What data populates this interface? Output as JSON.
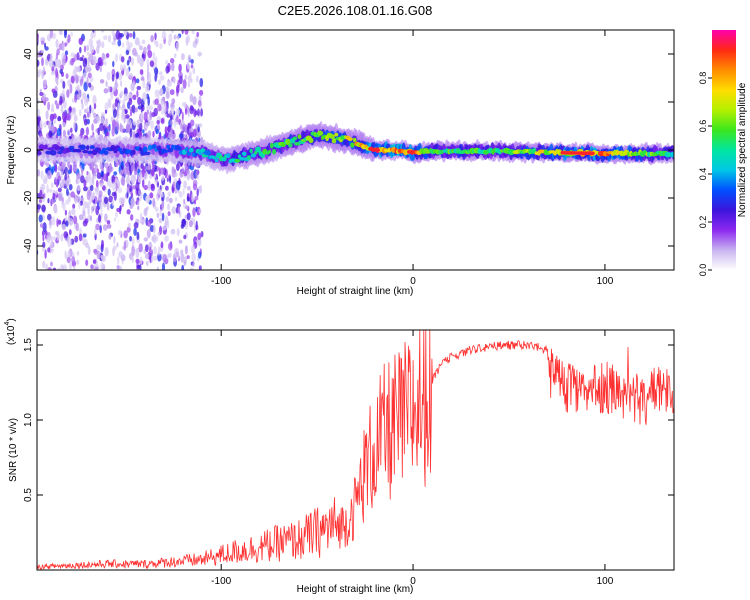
{
  "title": "C2E5.2026.108.01.16.G08",
  "chart_data": [
    {
      "type": "heatmap",
      "title": "C2E5.2026.108.01.16.G08",
      "xlabel": "Height of straight line (km)",
      "ylabel": "Frequency (Hz)",
      "xlim": [
        -196,
        136
      ],
      "ylim": [
        -50,
        50
      ],
      "x_ticks": [
        -100,
        0,
        100
      ],
      "x_tick_labels": [
        "-100",
        "0",
        "100"
      ],
      "y_ticks": [
        -40,
        -20,
        0,
        20,
        40
      ],
      "y_tick_labels": [
        "-40",
        "-20",
        "0",
        "20",
        "40"
      ],
      "colorbar": {
        "label": "Normalized spectral amplitude",
        "range": [
          0,
          1
        ],
        "ticks": [
          0.0,
          0.2,
          0.4,
          0.6,
          0.8
        ],
        "tick_labels": [
          "0.0",
          "0.2",
          "0.4",
          "0.6",
          "0.8"
        ],
        "colormap": [
          "#ffffff",
          "#c8b4f0",
          "#8c28f0",
          "#3c14dc",
          "#0050ff",
          "#00c8e6",
          "#00e6a0",
          "#3ce61e",
          "#b4f000",
          "#ffdc00",
          "#ff8c00",
          "#ff2814",
          "#ff00aa"
        ]
      },
      "ridge": {
        "description": "centre frequency of dominant spectral ridge vs height",
        "height_km": [
          -196,
          -160,
          -130,
          -110,
          -100,
          -90,
          -75,
          -60,
          -50,
          -40,
          -30,
          -20,
          -10,
          0,
          10,
          40,
          70,
          100,
          136
        ],
        "freq_hz": [
          0,
          0,
          0,
          -1,
          -4,
          -3,
          0,
          4,
          6,
          5,
          3,
          0,
          0,
          -1,
          -0.5,
          -0.5,
          -1,
          -1.5,
          -1.5
        ],
        "peak_amplitude": [
          0.25,
          0.3,
          0.35,
          0.45,
          0.5,
          0.55,
          0.55,
          0.6,
          0.65,
          0.7,
          0.75,
          0.9,
          0.9,
          0.9,
          0.6,
          0.55,
          0.75,
          0.85,
          0.5
        ]
      },
      "scatter_noise_region_km": [
        -196,
        -110
      ]
    },
    {
      "type": "line",
      "xlabel": "Height of straight line (km)",
      "ylabel": "SNR (10 * v/v)",
      "y_scale_label": "(x10",
      "y_scale_exponent": "4",
      "y_scale_suffix": ")",
      "xlim": [
        -196,
        136
      ],
      "ylim": [
        0,
        1.6
      ],
      "x_ticks": [
        -100,
        0,
        100
      ],
      "x_tick_labels": [
        "-100",
        "0",
        "100"
      ],
      "y_ticks": [
        0.5,
        1.0,
        1.5
      ],
      "y_tick_labels": [
        "0.5",
        "1.0",
        "1.5"
      ],
      "color": "#ff3030",
      "series": [
        {
          "name": "SNR",
          "x": [
            -196,
            -180,
            -160,
            -140,
            -120,
            -110,
            -100,
            -90,
            -80,
            -70,
            -60,
            -50,
            -40,
            -35,
            -30,
            -25,
            -20,
            -15,
            -10,
            -5,
            0,
            5,
            10,
            15,
            20,
            30,
            40,
            50,
            60,
            70,
            80,
            90,
            100,
            110,
            120,
            130,
            136
          ],
          "values": [
            0.02,
            0.03,
            0.04,
            0.04,
            0.06,
            0.07,
            0.1,
            0.13,
            0.15,
            0.18,
            0.2,
            0.25,
            0.3,
            0.33,
            0.45,
            0.7,
            0.85,
            0.95,
            1.0,
            1.05,
            1.12,
            1.2,
            1.3,
            1.4,
            1.45,
            1.5,
            1.52,
            1.53,
            1.53,
            1.5,
            1.4,
            1.35,
            1.4,
            1.35,
            1.3,
            1.4,
            1.3
          ]
        }
      ]
    }
  ]
}
